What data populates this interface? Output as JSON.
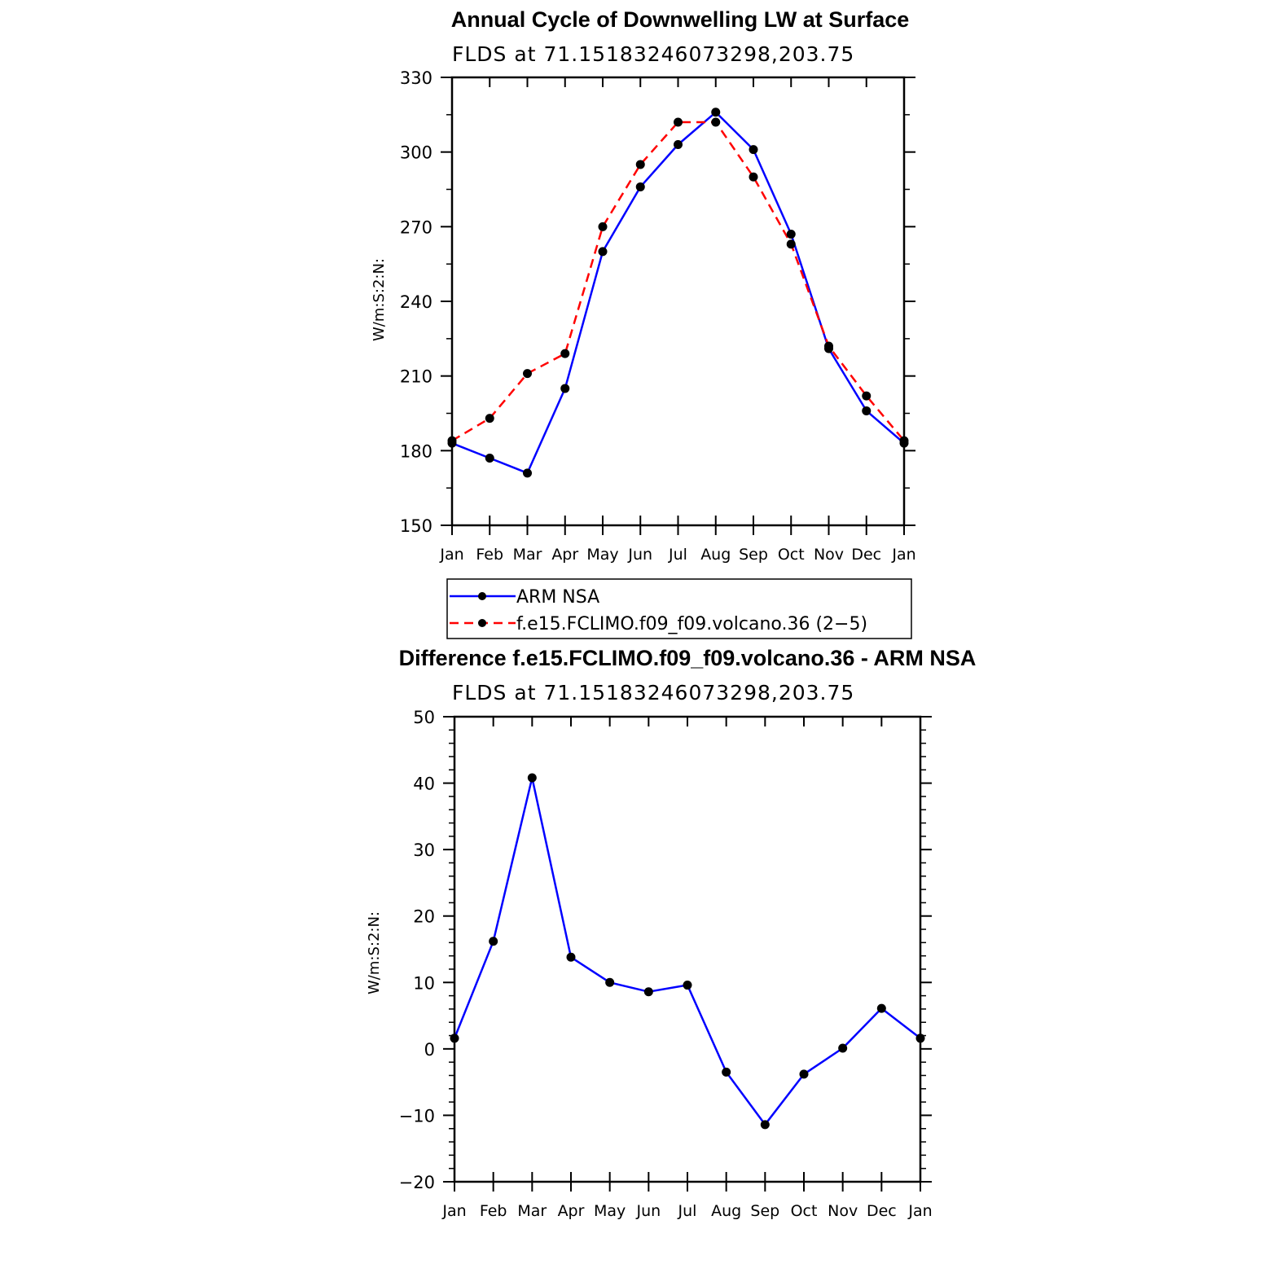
{
  "chart_data": [
    {
      "type": "line",
      "title": "Annual Cycle of Downwelling LW at Surface",
      "subtitle": "FLDS at 71.15183246073298,203.75",
      "ylabel": "W/m:S:2:N:",
      "xlabel": "",
      "ylim": [
        150,
        330
      ],
      "yticks": [
        150,
        180,
        210,
        240,
        270,
        300,
        330
      ],
      "categories": [
        "Jan",
        "Feb",
        "Mar",
        "Apr",
        "May",
        "Jun",
        "Jul",
        "Aug",
        "Sep",
        "Oct",
        "Nov",
        "Dec",
        "Jan"
      ],
      "series": [
        {
          "name": "ARM NSA",
          "color": "#0000ff",
          "dash": "solid",
          "values": [
            183,
            177,
            171,
            205,
            260,
            286,
            303,
            316,
            301,
            267,
            221,
            196,
            183
          ]
        },
        {
          "name": "f.e15.FCLIMO.f09_f09.volcano.36 (2−5)",
          "color": "#ff0000",
          "dash": "dashed",
          "values": [
            184,
            193,
            211,
            219,
            270,
            295,
            312,
            312,
            290,
            263,
            222,
            202,
            184
          ]
        }
      ],
      "legend": "below"
    },
    {
      "type": "line",
      "title": "Difference f.e15.FCLIMO.f09_f09.volcano.36 - ARM NSA",
      "subtitle": "FLDS at 71.15183246073298,203.75",
      "ylabel": "W/m:S:2:N:",
      "xlabel": "",
      "ylim": [
        -20,
        50
      ],
      "yticks": [
        -20,
        -10,
        0,
        10,
        20,
        30,
        40,
        50
      ],
      "ytick_labels": [
        "−20",
        "−10",
        "0",
        "10",
        "20",
        "30",
        "40",
        "50"
      ],
      "categories": [
        "Jan",
        "Feb",
        "Mar",
        "Apr",
        "May",
        "Jun",
        "Jul",
        "Aug",
        "Sep",
        "Oct",
        "Nov",
        "Dec",
        "Jan"
      ],
      "series": [
        {
          "name": "Difference",
          "color": "#0000ff",
          "dash": "solid",
          "values": [
            1.6,
            16.2,
            40.8,
            13.8,
            10.0,
            8.6,
            9.6,
            -3.5,
            -11.4,
            -3.8,
            0.1,
            6.1,
            1.6
          ]
        }
      ]
    }
  ]
}
